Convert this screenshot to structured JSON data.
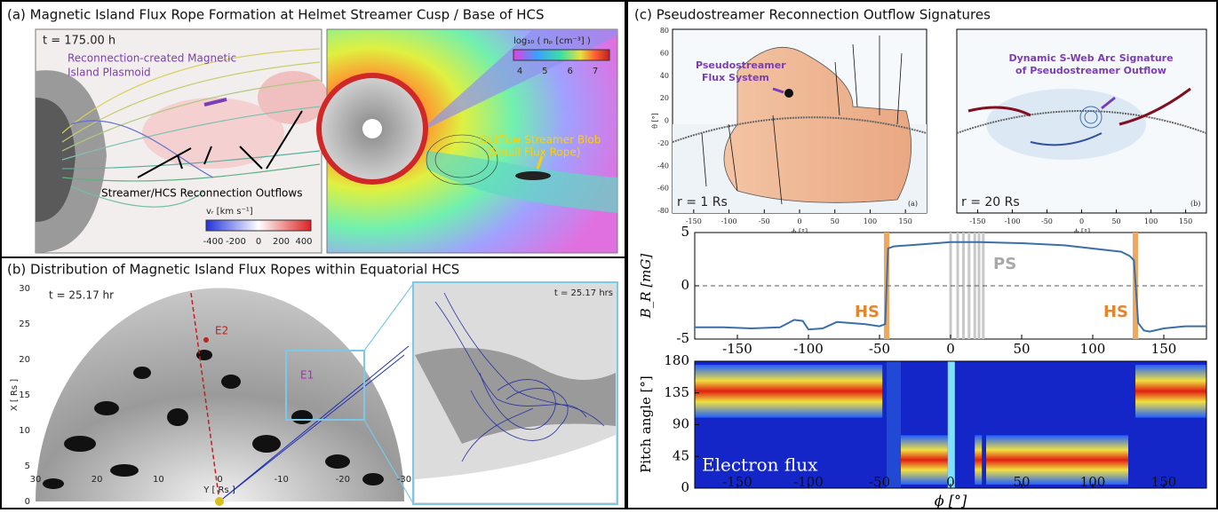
{
  "panel_a": {
    "title": "(a)  Magnetic Island Flux Rope Formation at Helmet Streamer Cusp / Base of HCS",
    "left_image": {
      "time": "t = 175.00 h",
      "annotation_plasmoid_1": "Reconnection-created Magnetic",
      "annotation_plasmoid_2": "Island Plasmoid",
      "annotation_outflows": "Streamer/HCS Reconnection Outflows",
      "colorbar_label": "vᵣ  [km s⁻¹]",
      "colorbar_ticks": [
        -400,
        -200,
        0,
        200,
        400
      ]
    },
    "right_image": {
      "colorbar_label": "log₁₀ ( nₚ [cm⁻³] )",
      "colorbar_ticks": [
        4,
        5,
        6,
        7
      ],
      "annotation_1": "Outflow Streamer Blob",
      "annotation_2": "(Small Flux Rope)"
    }
  },
  "panel_b": {
    "title": "(b)  Distribution of Magnetic Island Flux Ropes within Equatorial HCS",
    "left_image": {
      "time": "t =  25.17 hr",
      "x_label": "Y  [ Rs ]",
      "y_label": "X  [ Rs ]",
      "xticks": [
        30,
        20,
        10,
        0,
        -10,
        -20,
        -30
      ],
      "yticks": [
        0,
        5,
        10,
        15,
        20,
        25,
        30
      ],
      "label_e2": "E2",
      "label_e1": "E1"
    },
    "right_image": {
      "time": "t = 25.17 hrs"
    }
  },
  "panel_c": {
    "title": "(c)  Pseudostreamer Reconnection Outflow Signatures",
    "map_left": {
      "annotation_1": "Pseudostreamer",
      "annotation_2": "Flux System",
      "radius": "r = 1 Rs",
      "corner": "(a)",
      "y_label": "θ [°]",
      "x_label": "ϕ [°]",
      "yticks": [
        80,
        60,
        40,
        20,
        0,
        -20,
        -40,
        -60,
        -80
      ],
      "xticks": [
        -150,
        -100,
        -50,
        0,
        50,
        100,
        150
      ]
    },
    "map_right": {
      "annotation_1": "Dynamic S-Web Arc Signature",
      "annotation_2": "of Pseudostreamer Outflow",
      "radius": "r = 20 Rs",
      "corner": "(b)",
      "x_label": "ϕ [°]",
      "xticks": [
        -150,
        -100,
        -50,
        0,
        50,
        100,
        150
      ]
    },
    "line_plot": {
      "y_label": "B_R [mG]",
      "xlim": [
        -180,
        180
      ],
      "ylim": [
        -5,
        5
      ],
      "yticks": [
        -5,
        0,
        5
      ],
      "xticks": [
        -150,
        -100,
        -50,
        0,
        50,
        100,
        150
      ],
      "label_hs_left": "HS",
      "label_ps": "PS",
      "label_hs_right": "HS",
      "x": [
        -180,
        -160,
        -140,
        -120,
        -110,
        -104,
        -100,
        -90,
        -80,
        -70,
        -60,
        -50,
        -46,
        -44,
        -40,
        -20,
        0,
        20,
        50,
        80,
        100,
        120,
        126,
        129,
        132,
        136,
        140,
        150,
        165,
        180
      ],
      "values": [
        -3.9,
        -3.9,
        -4.0,
        -3.9,
        -3.2,
        -3.3,
        -4.1,
        -4.0,
        -3.4,
        -3.5,
        -3.6,
        -3.8,
        -3.6,
        3.5,
        3.7,
        3.9,
        4.1,
        4.1,
        4.0,
        3.8,
        3.5,
        3.2,
        2.8,
        2.4,
        -3.5,
        -4.2,
        -4.3,
        -4.0,
        -3.8,
        -3.8
      ]
    },
    "spectrogram": {
      "y_label": "Pitch angle [°]",
      "yticks": [
        0,
        45,
        90,
        135,
        180
      ],
      "xticks": [
        -150,
        -100,
        -50,
        0,
        50,
        100,
        150
      ],
      "x_label": "ϕ [°]",
      "label": "Electron flux"
    }
  }
}
